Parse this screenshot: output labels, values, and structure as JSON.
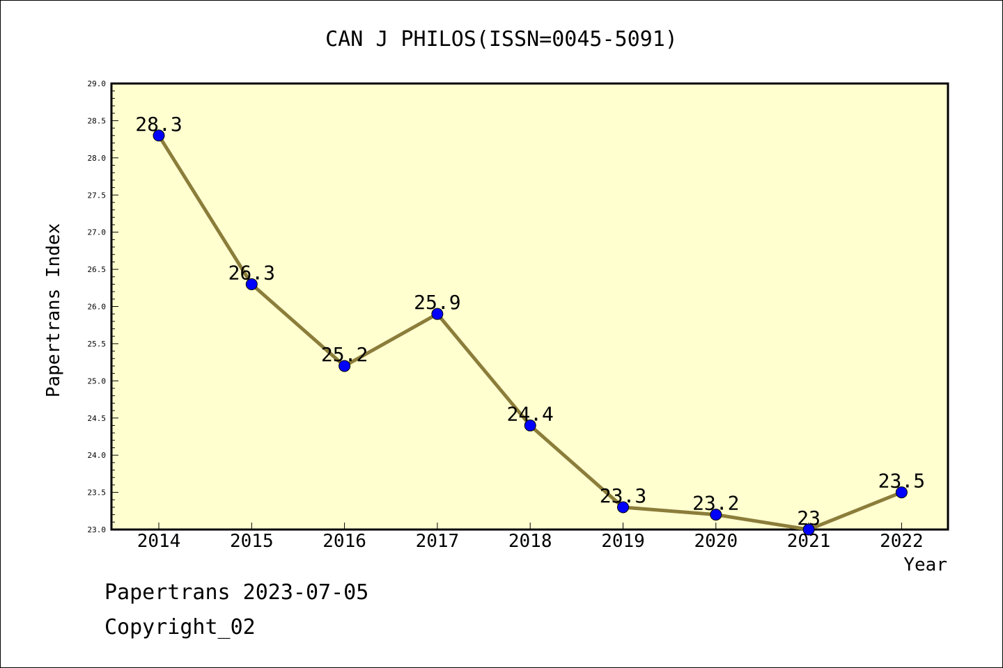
{
  "chart_data": {
    "type": "line",
    "title": "CAN J PHILOS(ISSN=0045-5091)",
    "xlabel": "Year",
    "ylabel": "Papertrans Index",
    "categories": [
      "2014",
      "2015",
      "2016",
      "2017",
      "2018",
      "2019",
      "2020",
      "2021",
      "2022"
    ],
    "values": [
      28.3,
      26.3,
      25.2,
      25.9,
      24.4,
      23.3,
      23.2,
      23.0,
      23.5
    ],
    "value_labels": [
      "28.3",
      "26.3",
      "25.2",
      "25.9",
      "24.4",
      "23.3",
      "23.2",
      "23",
      "23.5"
    ],
    "ylim": [
      23.0,
      29.0
    ],
    "yticks": [
      "23.0",
      "23.5",
      "24.0",
      "24.5",
      "25.0",
      "25.5",
      "26.0",
      "26.5",
      "27.0",
      "27.5",
      "28.0",
      "28.5",
      "29.0"
    ],
    "grid": false,
    "colors": {
      "plot_background": "#ffffd0",
      "line": "#8b7d3a",
      "marker": "#0000ff"
    }
  },
  "footer": {
    "source": "Papertrans 2023-07-05",
    "copyright": "Copyright_02"
  }
}
